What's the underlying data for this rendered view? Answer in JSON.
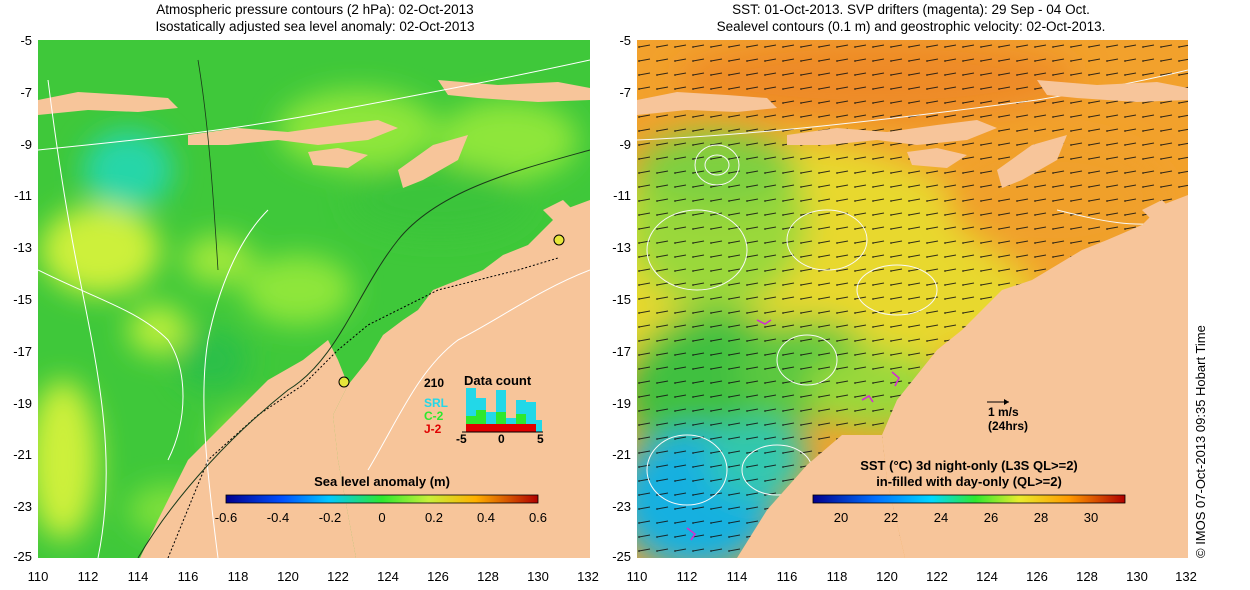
{
  "left_panel": {
    "title_line1": "Atmospheric pressure contours (2 hPa): 02-Oct-2013",
    "title_line2": "Isostatically adjusted sea level anomaly: 02-Oct-2013",
    "colorbar": {
      "title": "Sea level anomaly (m)",
      "ticks": [
        "-0.6",
        "-0.4",
        "-0.2",
        "0",
        "0.2",
        "0.4",
        "0.6"
      ],
      "range": [
        -0.6,
        0.6
      ]
    },
    "data_count": {
      "title": "Data count",
      "max_label": "210",
      "series": [
        "SRL",
        "C-2",
        "J-2"
      ],
      "series_colors": [
        "#22d8e8",
        "#2ee82e",
        "#e00000"
      ],
      "axis_ticks": [
        "-5",
        "0",
        "5"
      ]
    }
  },
  "right_panel": {
    "title_line1": "SST: 01-Oct-2013. SVP drifters (magenta): 29 Sep - 04 Oct.",
    "title_line2": "Sealevel contours (0.1 m) and geostrophic velocity: 02-Oct-2013.",
    "scale_arrow_label1": "1 m/s",
    "scale_arrow_label2": "(24hrs)",
    "colorbar": {
      "title_line1": "SST (°C)  3d night-only (L3S QL>=2)",
      "title_line2": "in-filled with day-only (QL>=2)",
      "ticks": [
        "20",
        "22",
        "24",
        "26",
        "28",
        "30"
      ],
      "range": [
        19,
        31.5
      ]
    }
  },
  "axes": {
    "y_ticks": [
      "-5",
      "-7",
      "-9",
      "-11",
      "-13",
      "-15",
      "-17",
      "-19",
      "-21",
      "-23",
      "-25"
    ],
    "x_ticks": [
      "110",
      "112",
      "114",
      "116",
      "118",
      "120",
      "122",
      "124",
      "126",
      "128",
      "130",
      "132"
    ]
  },
  "credit": "© IMOS 07-Oct-2013 09:35 Hobart Time",
  "colors": {
    "land": "#f7c59a",
    "ocean_left": "#3fc83a",
    "ocean_right": "#f2a12c"
  }
}
